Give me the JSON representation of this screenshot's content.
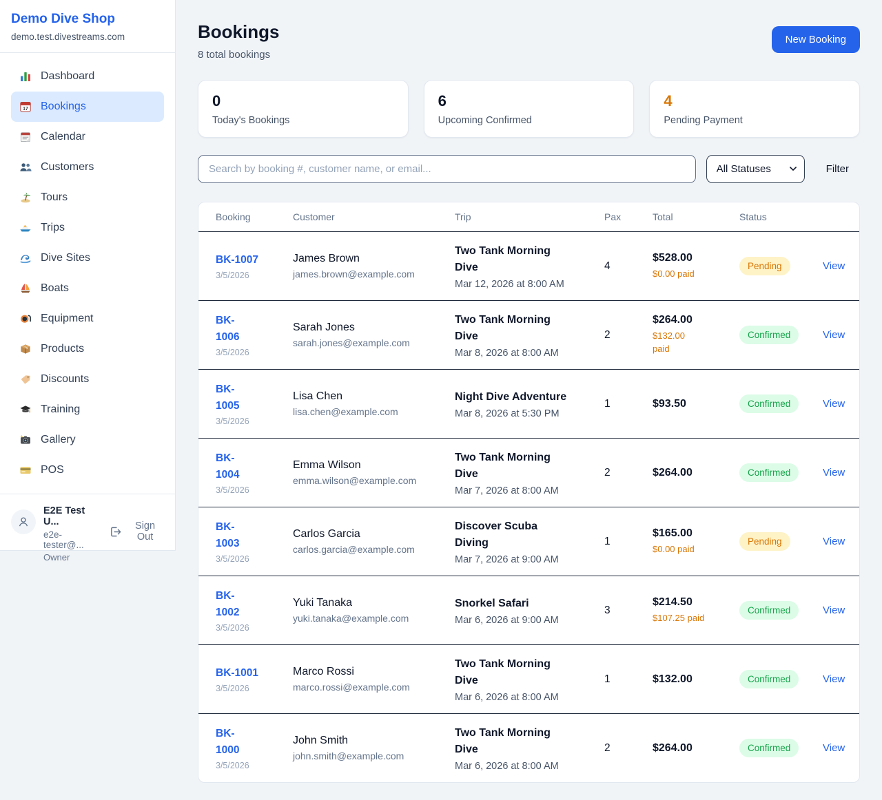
{
  "brand": {
    "name": "Demo Dive Shop",
    "domain": "demo.test.divestreams.com"
  },
  "sidebar": {
    "items": [
      {
        "label": "Dashboard",
        "icon": "bar-chart-icon",
        "active": false
      },
      {
        "label": "Bookings",
        "icon": "calendar-date-icon",
        "active": true
      },
      {
        "label": "Calendar",
        "icon": "calendar-pad-icon",
        "active": false
      },
      {
        "label": "Customers",
        "icon": "people-icon",
        "active": false
      },
      {
        "label": "Tours",
        "icon": "island-icon",
        "active": false
      },
      {
        "label": "Trips",
        "icon": "speedboat-icon",
        "active": false
      },
      {
        "label": "Dive Sites",
        "icon": "wave-icon",
        "active": false
      },
      {
        "label": "Boats",
        "icon": "sailboat-icon",
        "active": false
      },
      {
        "label": "Equipment",
        "icon": "dive-mask-icon",
        "active": false
      },
      {
        "label": "Products",
        "icon": "package-icon",
        "active": false
      },
      {
        "label": "Discounts",
        "icon": "tag-icon",
        "active": false
      },
      {
        "label": "Training",
        "icon": "graduation-cap-icon",
        "active": false
      },
      {
        "label": "Gallery",
        "icon": "camera-icon",
        "active": false
      },
      {
        "label": "POS",
        "icon": "credit-card-icon",
        "active": false
      }
    ],
    "user": {
      "name": "E2E Test U...",
      "email": "e2e-tester@...",
      "role": "Owner",
      "sign_out_label": "Sign Out"
    }
  },
  "header": {
    "title": "Bookings",
    "subtitle": "8 total bookings",
    "new_booking_label": "New Booking"
  },
  "stats": [
    {
      "value": "0",
      "label": "Today's Bookings",
      "value_color": "#0f172a"
    },
    {
      "value": "6",
      "label": "Upcoming Confirmed",
      "value_color": "#0f172a"
    },
    {
      "value": "4",
      "label": "Pending Payment",
      "value_color": "#d97706"
    }
  ],
  "filters": {
    "search_placeholder": "Search by booking #, customer name, or email...",
    "status_selected": "All Statuses",
    "filter_label": "Filter"
  },
  "table": {
    "columns": [
      "Booking",
      "Customer",
      "Trip",
      "Pax",
      "Total",
      "Status"
    ],
    "view_label": "View",
    "status_styles": {
      "Pending": {
        "bg": "#fef3c7",
        "color": "#d97706"
      },
      "Confirmed": {
        "bg": "#dcfce7",
        "color": "#16a34a"
      }
    },
    "rows": [
      {
        "id": "BK-1007",
        "id_two_line": false,
        "date": "3/5/2026",
        "customer": "James Brown",
        "email": "james.brown@example.com",
        "trip": "Two Tank Morning Dive",
        "trip_time": "Mar 12, 2026 at 8:00 AM",
        "pax": "4",
        "total": "$528.00",
        "paid": "$0.00 paid",
        "paid_two_line": false,
        "status": "Pending"
      },
      {
        "id": "BK-1006",
        "id_two_line": true,
        "date": "3/5/2026",
        "customer": "Sarah Jones",
        "email": "sarah.jones@example.com",
        "trip": "Two Tank Morning Dive",
        "trip_time": "Mar 8, 2026 at 8:00 AM",
        "pax": "2",
        "total": "$264.00",
        "paid": "$132.00 paid",
        "paid_two_line": true,
        "status": "Confirmed"
      },
      {
        "id": "BK-1005",
        "id_two_line": true,
        "date": "3/5/2026",
        "customer": "Lisa Chen",
        "email": "lisa.chen@example.com",
        "trip": "Night Dive Adventure",
        "trip_time": "Mar 8, 2026 at 5:30 PM",
        "pax": "1",
        "total": "$93.50",
        "paid": "",
        "paid_two_line": false,
        "status": "Confirmed"
      },
      {
        "id": "BK-1004",
        "id_two_line": true,
        "date": "3/5/2026",
        "customer": "Emma Wilson",
        "email": "emma.wilson@example.com",
        "trip": "Two Tank Morning Dive",
        "trip_time": "Mar 7, 2026 at 8:00 AM",
        "pax": "2",
        "total": "$264.00",
        "paid": "",
        "paid_two_line": false,
        "status": "Confirmed"
      },
      {
        "id": "BK-1003",
        "id_two_line": true,
        "date": "3/5/2026",
        "customer": "Carlos Garcia",
        "email": "carlos.garcia@example.com",
        "trip": "Discover Scuba Diving",
        "trip_time": "Mar 7, 2026 at 9:00 AM",
        "pax": "1",
        "total": "$165.00",
        "paid": "$0.00 paid",
        "paid_two_line": false,
        "status": "Pending"
      },
      {
        "id": "BK-1002",
        "id_two_line": true,
        "date": "3/5/2026",
        "customer": "Yuki Tanaka",
        "email": "yuki.tanaka@example.com",
        "trip": "Snorkel Safari",
        "trip_time": "Mar 6, 2026 at 9:00 AM",
        "pax": "3",
        "total": "$214.50",
        "paid": "$107.25 paid",
        "paid_two_line": false,
        "status": "Confirmed"
      },
      {
        "id": "BK-1001",
        "id_two_line": false,
        "date": "3/5/2026",
        "customer": "Marco Rossi",
        "email": "marco.rossi@example.com",
        "trip": "Two Tank Morning Dive",
        "trip_time": "Mar 6, 2026 at 8:00 AM",
        "pax": "1",
        "total": "$132.00",
        "paid": "",
        "paid_two_line": false,
        "status": "Confirmed"
      },
      {
        "id": "BK-1000",
        "id_two_line": true,
        "date": "3/5/2026",
        "customer": "John Smith",
        "email": "john.smith@example.com",
        "trip": "Two Tank Morning Dive",
        "trip_time": "Mar 6, 2026 at 8:00 AM",
        "pax": "2",
        "total": "$264.00",
        "paid": "",
        "paid_two_line": false,
        "status": "Confirmed"
      }
    ]
  },
  "colors": {
    "accent_blue": "#2563eb",
    "orange": "#d97706",
    "green": "#16a34a",
    "pending_badge_bg": "#fef3c7",
    "confirmed_badge_bg": "#dcfce7",
    "active_nav_bg": "#dbeafe",
    "row_divider": "#1e293b"
  },
  "ui_icons": [
    "person-icon",
    "logout-icon",
    "chevron-down-icon"
  ]
}
